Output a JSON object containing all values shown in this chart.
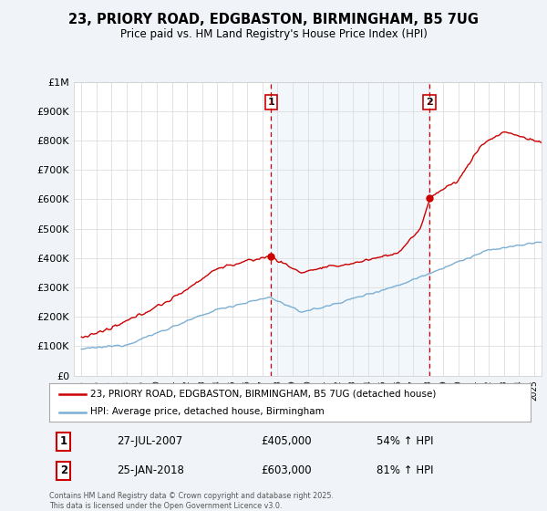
{
  "title": "23, PRIORY ROAD, EDGBASTON, BIRMINGHAM, B5 7UG",
  "subtitle": "Price paid vs. HM Land Registry's House Price Index (HPI)",
  "line1_label": "23, PRIORY ROAD, EDGBASTON, BIRMINGHAM, B5 7UG (detached house)",
  "line2_label": "HPI: Average price, detached house, Birmingham",
  "line1_color": "#cc0000",
  "line2_color": "#7bafd4",
  "vline_color": "#cc0000",
  "shade_color": "#ddeeff",
  "background_color": "#f0f4f8",
  "plot_bg_color": "#ffffff",
  "sale1_date": "27-JUL-2007",
  "sale1_price": "£405,000",
  "sale1_hpi": "54% ↑ HPI",
  "sale1_year": 2007.57,
  "sale1_value": 405000,
  "sale2_date": "25-JAN-2018",
  "sale2_price": "£603,000",
  "sale2_hpi": "81% ↑ HPI",
  "sale2_year": 2018.07,
  "sale2_value": 603000,
  "ylim": [
    0,
    1000000
  ],
  "xlim_start": 1994.5,
  "xlim_end": 2025.5,
  "footer": "Contains HM Land Registry data © Crown copyright and database right 2025.\nThis data is licensed under the Open Government Licence v3.0.",
  "ytick_values": [
    0,
    100000,
    200000,
    300000,
    400000,
    500000,
    600000,
    700000,
    800000,
    900000,
    1000000
  ],
  "ytick_labels": [
    "£0",
    "£100K",
    "£200K",
    "£300K",
    "£400K",
    "£500K",
    "£600K",
    "£700K",
    "£800K",
    "£900K",
    "£1M"
  ]
}
